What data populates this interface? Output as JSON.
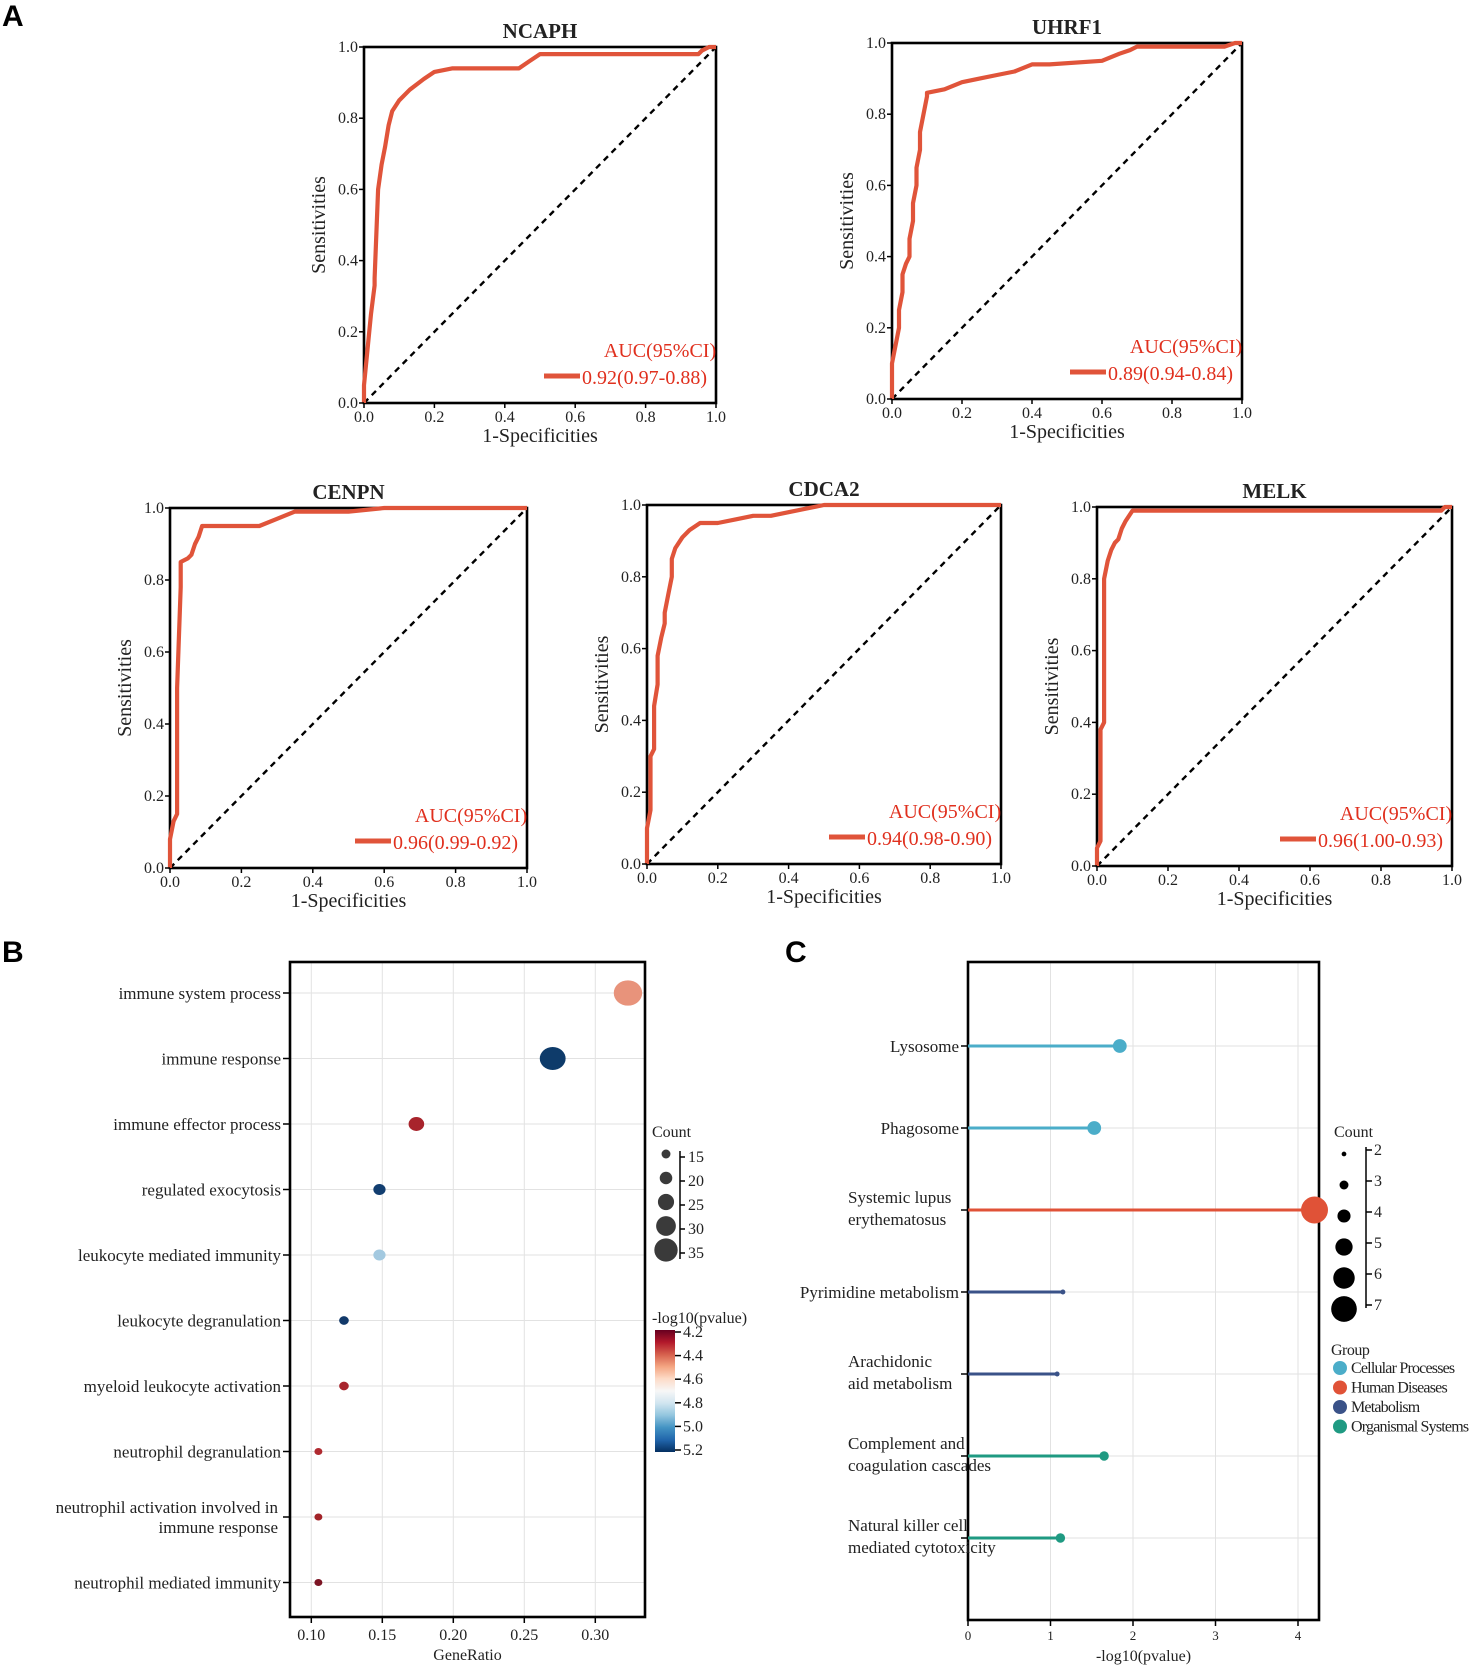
{
  "panel_labels": {
    "a": "A",
    "b": "B",
    "c": "C"
  },
  "roc_legend_title": "AUC(95%CI)",
  "colors": {
    "roc": "#e0543a",
    "auc_text": "#e0301e"
  },
  "chart_data": [
    {
      "type": "line",
      "title": "NCAPH",
      "xlabel": "1-Specificities",
      "ylabel": "Sensitivities",
      "xlim": [
        0,
        1
      ],
      "ylim": [
        0,
        1
      ],
      "ticks": [
        "0.0",
        "0.2",
        "0.4",
        "0.6",
        "0.8",
        "1.0"
      ],
      "auc_label": "0.92(0.97-0.88)",
      "diagonal": true,
      "x": [
        0,
        0,
        0.01,
        0.02,
        0.03,
        0.03,
        0.04,
        0.05,
        0.06,
        0.07,
        0.08,
        0.1,
        0.13,
        0.17,
        0.2,
        0.25,
        0.4,
        0.44,
        0.47,
        0.5,
        0.7,
        0.9,
        0.95,
        0.96,
        0.98,
        1
      ],
      "y": [
        0,
        0.05,
        0.15,
        0.25,
        0.33,
        0.35,
        0.6,
        0.67,
        0.72,
        0.78,
        0.82,
        0.85,
        0.88,
        0.91,
        0.93,
        0.94,
        0.94,
        0.94,
        0.96,
        0.98,
        0.98,
        0.98,
        0.98,
        0.99,
        1,
        1
      ]
    },
    {
      "type": "line",
      "title": "UHRF1",
      "xlabel": "1-Specificities",
      "ylabel": "Sensitivities",
      "xlim": [
        0,
        1
      ],
      "ylim": [
        0,
        1
      ],
      "ticks": [
        "0.0",
        "0.2",
        "0.4",
        "0.6",
        "0.8",
        "1.0"
      ],
      "auc_label": "0.89(0.94-0.84)",
      "diagonal": true,
      "x": [
        0,
        0,
        0.01,
        0.02,
        0.02,
        0.03,
        0.03,
        0.04,
        0.05,
        0.05,
        0.06,
        0.06,
        0.07,
        0.07,
        0.08,
        0.08,
        0.09,
        0.1,
        0.1,
        0.15,
        0.2,
        0.25,
        0.3,
        0.35,
        0.4,
        0.45,
        0.6,
        0.65,
        0.68,
        0.7,
        0.9,
        0.95,
        0.98,
        1
      ],
      "y": [
        0,
        0.1,
        0.15,
        0.2,
        0.25,
        0.3,
        0.35,
        0.38,
        0.4,
        0.45,
        0.5,
        0.55,
        0.6,
        0.65,
        0.7,
        0.75,
        0.8,
        0.85,
        0.86,
        0.87,
        0.89,
        0.9,
        0.91,
        0.92,
        0.94,
        0.94,
        0.95,
        0.97,
        0.98,
        0.99,
        0.99,
        0.99,
        1,
        1
      ]
    },
    {
      "type": "line",
      "title": "CENPN",
      "xlabel": "1-Specificities",
      "ylabel": "Sensitivities",
      "xlim": [
        0,
        1
      ],
      "ylim": [
        0,
        1
      ],
      "ticks": [
        "0.0",
        "0.2",
        "0.4",
        "0.6",
        "0.8",
        "1.0"
      ],
      "auc_label": "0.96(0.99-0.92)",
      "diagonal": true,
      "x": [
        0,
        0,
        0.01,
        0.02,
        0.02,
        0.03,
        0.03,
        0.05,
        0.06,
        0.07,
        0.08,
        0.09,
        0.1,
        0.15,
        0.25,
        0.3,
        0.35,
        0.5,
        0.6,
        0.9,
        0.95,
        1
      ],
      "y": [
        0,
        0.08,
        0.13,
        0.15,
        0.5,
        0.78,
        0.85,
        0.86,
        0.87,
        0.9,
        0.92,
        0.95,
        0.95,
        0.95,
        0.95,
        0.97,
        0.99,
        0.99,
        1,
        1,
        1,
        1
      ]
    },
    {
      "type": "line",
      "title": "CDCA2",
      "xlabel": "1-Specificities",
      "ylabel": "Sensitivities",
      "xlim": [
        0,
        1
      ],
      "ylim": [
        0,
        1
      ],
      "ticks": [
        "0.0",
        "0.2",
        "0.4",
        "0.6",
        "0.8",
        "1.0"
      ],
      "auc_label": "0.94(0.98-0.90)",
      "diagonal": true,
      "x": [
        0,
        0,
        0.01,
        0.01,
        0.02,
        0.02,
        0.03,
        0.03,
        0.04,
        0.05,
        0.05,
        0.06,
        0.07,
        0.07,
        0.08,
        0.1,
        0.12,
        0.15,
        0.2,
        0.25,
        0.3,
        0.35,
        0.4,
        0.45,
        0.5,
        0.6,
        0.7,
        0.9,
        1
      ],
      "y": [
        0,
        0.1,
        0.15,
        0.3,
        0.32,
        0.44,
        0.5,
        0.58,
        0.63,
        0.67,
        0.7,
        0.75,
        0.8,
        0.85,
        0.88,
        0.91,
        0.93,
        0.95,
        0.95,
        0.96,
        0.97,
        0.97,
        0.98,
        0.99,
        1,
        1,
        1,
        1,
        1
      ]
    },
    {
      "type": "line",
      "title": "MELK",
      "xlabel": "1-Specificities",
      "ylabel": "Sensitivities",
      "xlim": [
        0,
        1
      ],
      "ylim": [
        0,
        1
      ],
      "ticks": [
        "0.0",
        "0.2",
        "0.4",
        "0.6",
        "0.8",
        "1.0"
      ],
      "auc_label": "0.96(1.00-0.93)",
      "diagonal": true,
      "x": [
        0,
        0,
        0.01,
        0.01,
        0.02,
        0.02,
        0.03,
        0.04,
        0.05,
        0.06,
        0.07,
        0.08,
        0.1,
        0.15,
        0.3,
        0.6,
        0.97,
        0.98,
        1
      ],
      "y": [
        0,
        0.05,
        0.07,
        0.38,
        0.4,
        0.8,
        0.85,
        0.88,
        0.9,
        0.91,
        0.94,
        0.96,
        0.99,
        0.99,
        0.99,
        0.99,
        0.99,
        1,
        1
      ]
    },
    {
      "type": "scatter",
      "xlabel": "GeneRatio",
      "ylabel": "",
      "xlim": [
        0.085,
        0.335
      ],
      "xticks": [
        0.1,
        0.15,
        0.2,
        0.25,
        0.3
      ],
      "xtick_labels": [
        "0.10",
        "0.15",
        "0.20",
        "0.25",
        "0.30"
      ],
      "terms": [
        {
          "label": [
            "immune system process"
          ],
          "x": 0.323,
          "count": 36,
          "color": "#e8937b"
        },
        {
          "label": [
            "immune response"
          ],
          "x": 0.27,
          "count": 33,
          "color": "#0e3b6a"
        },
        {
          "label": [
            "immune effector process"
          ],
          "x": 0.174,
          "count": 21,
          "color": "#a8242c"
        },
        {
          "label": [
            "regulated exocytosis"
          ],
          "x": 0.148,
          "count": 17,
          "color": "#123e70"
        },
        {
          "label": [
            "leukocyte mediated immunity"
          ],
          "x": 0.148,
          "count": 17,
          "color": "#a3c9e0"
        },
        {
          "label": [
            "leukocyte degranulation"
          ],
          "x": 0.123,
          "count": 14,
          "color": "#12396a"
        },
        {
          "label": [
            "myeloid leukocyte activation"
          ],
          "x": 0.123,
          "count": 14,
          "color": "#a8252d"
        },
        {
          "label": [
            "neutrophil degranulation"
          ],
          "x": 0.105,
          "count": 12,
          "color": "#b02a30"
        },
        {
          "label": [
            "neutrophil activation involved in",
            "immune response"
          ],
          "x": 0.105,
          "count": 12,
          "color": "#a22328"
        },
        {
          "label": [
            "neutrophil mediated immunity"
          ],
          "x": 0.105,
          "count": 12,
          "color": "#7c1524"
        }
      ],
      "size_legend": {
        "title": "Count",
        "values": [
          15,
          20,
          25,
          30,
          35
        ]
      },
      "color_legend": {
        "title": "-log10(pvalue)",
        "ticks": [
          "4.2",
          "4.4",
          "4.6",
          "4.8",
          "5.0",
          "5.2"
        ],
        "colors": [
          "#67001f",
          "#b2182b",
          "#d6604d",
          "#f4a582",
          "#fddbc7",
          "#f7f7f7",
          "#d1e5f0",
          "#92c5de",
          "#4393c3",
          "#2166ac",
          "#053061"
        ]
      }
    },
    {
      "type": "scatter",
      "subtype": "lollipop",
      "xlabel": "-log10(pvalue)",
      "ylabel": "",
      "xlim": [
        0,
        4.25
      ],
      "xticks": [
        0,
        1,
        2,
        3,
        4
      ],
      "xtick_labels": [
        "0",
        "1",
        "2",
        "3",
        "4"
      ],
      "pathways": [
        {
          "label": [
            "Lysosome"
          ],
          "x": 1.84,
          "count": 4,
          "group": "Cellular Processes"
        },
        {
          "label": [
            "Phagosome"
          ],
          "x": 1.53,
          "count": 4,
          "group": "Cellular Processes"
        },
        {
          "label": [
            "Systemic lupus",
            "erythematosus"
          ],
          "x": 4.2,
          "count": 7,
          "group": "Human Diseases"
        },
        {
          "label": [
            "Pyrimidine metabolism"
          ],
          "x": 1.15,
          "count": 2,
          "group": "Metabolism"
        },
        {
          "label": [
            "Arachidonic",
            "aid metabolism"
          ],
          "x": 1.08,
          "count": 2,
          "group": "Metabolism"
        },
        {
          "label": [
            "Complement and",
            "coagulation cascades"
          ],
          "x": 1.65,
          "count": 3,
          "group": "Organismal Systems"
        },
        {
          "label": [
            "Natural killer cell",
            "mediated cytotoxicity"
          ],
          "x": 1.12,
          "count": 3,
          "group": "Organismal Systems"
        }
      ],
      "size_legend": {
        "title": "Count",
        "values": [
          2,
          3,
          4,
          5,
          6,
          7
        ]
      },
      "group_legend": {
        "title": "Group",
        "items": [
          {
            "name": "Cellular Processes",
            "color": "#4badc9"
          },
          {
            "name": "Human Diseases",
            "color": "#e05237"
          },
          {
            "name": "Metabolism",
            "color": "#3a5288"
          },
          {
            "name": "Organismal Systems",
            "color": "#1f9a82"
          }
        ]
      }
    }
  ]
}
